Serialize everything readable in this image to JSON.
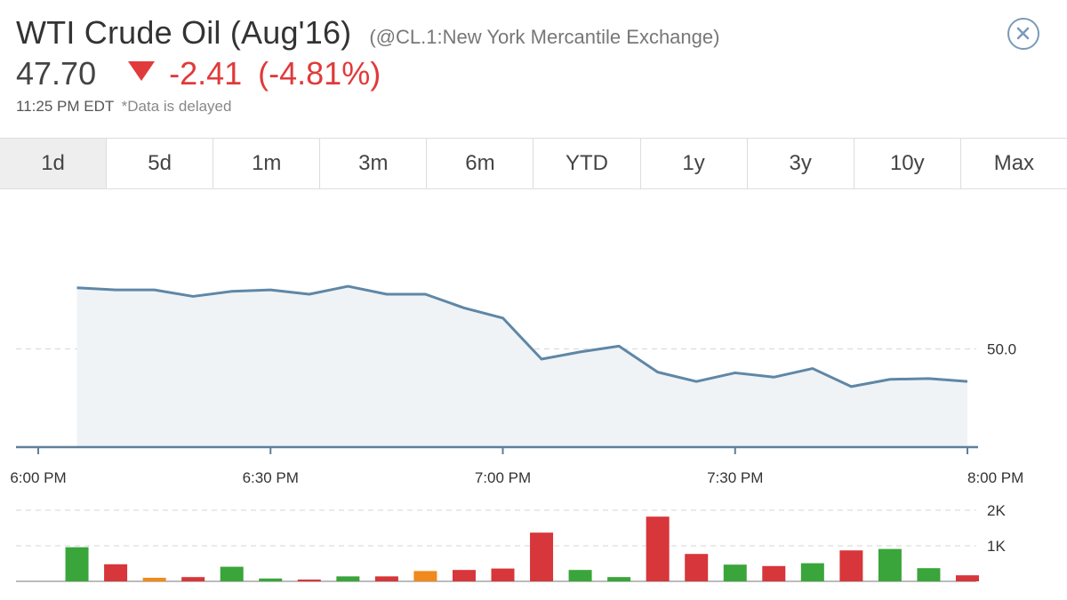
{
  "header": {
    "title": "WTI Crude Oil (Aug'16)",
    "exchange": "(@CL.1:New York Mercantile Exchange)",
    "price": "47.70",
    "change": "-2.41",
    "change_pct": "(-4.81%)",
    "time": "11:25 PM EDT",
    "delay_note": "*Data is delayed",
    "close_icon": "close-circle-icon",
    "down_icon": "triangle-down-icon"
  },
  "colors": {
    "down": "#e03a3a",
    "line": "#5f87a6",
    "area": "#eff3f6",
    "vol_up": "#3aa53a",
    "vol_down": "#d7363a",
    "vol_neutral": "#f08a1c"
  },
  "tabs": [
    {
      "label": "1d",
      "active": true
    },
    {
      "label": "5d",
      "active": false
    },
    {
      "label": "1m",
      "active": false
    },
    {
      "label": "3m",
      "active": false
    },
    {
      "label": "6m",
      "active": false
    },
    {
      "label": "YTD",
      "active": false
    },
    {
      "label": "1y",
      "active": false
    },
    {
      "label": "3y",
      "active": false
    },
    {
      "label": "10y",
      "active": false
    },
    {
      "label": "Max",
      "active": false
    }
  ],
  "chart_data": [
    {
      "type": "area",
      "ylim": [
        48.64,
        51.29
      ],
      "y_ticks": [
        {
          "value": 50.0,
          "label": "50.0"
        }
      ],
      "xlim": [
        0,
        120
      ],
      "x_ticks": [
        {
          "value": 0,
          "label": "6:00 PM"
        },
        {
          "value": 30,
          "label": "6:30 PM"
        },
        {
          "value": 60,
          "label": "7:00 PM"
        },
        {
          "value": 90,
          "label": "7:30 PM"
        },
        {
          "value": 120,
          "label": "8:00 PM"
        }
      ],
      "grid": "dashed horizontal at 50.0",
      "x": [
        5,
        10,
        15,
        20,
        25,
        30,
        35,
        40,
        45,
        50,
        55,
        60,
        65,
        70,
        75,
        80,
        85,
        90,
        95,
        100,
        105,
        110,
        115,
        120
      ],
      "values": [
        50.85,
        50.82,
        50.82,
        50.73,
        50.8,
        50.82,
        50.76,
        50.87,
        50.76,
        50.76,
        50.57,
        50.43,
        49.86,
        49.96,
        50.04,
        49.68,
        49.55,
        49.67,
        49.61,
        49.73,
        49.48,
        49.58,
        49.59,
        49.55
      ]
    },
    {
      "type": "bar",
      "ylim": [
        0,
        2000
      ],
      "y_ticks": [
        {
          "value": 1000,
          "label": "1K"
        },
        {
          "value": 2000,
          "label": "2K"
        }
      ],
      "grid": "dashed horizontal at 1K and 2K",
      "x": [
        5,
        10,
        15,
        20,
        25,
        30,
        35,
        40,
        45,
        50,
        55,
        60,
        65,
        70,
        75,
        80,
        85,
        90,
        95,
        100,
        105,
        110,
        115,
        120
      ],
      "values": [
        960,
        480,
        100,
        120,
        410,
        80,
        50,
        140,
        140,
        290,
        320,
        360,
        1370,
        320,
        120,
        1820,
        770,
        470,
        430,
        510,
        870,
        910,
        370,
        170
      ],
      "directions": [
        "up",
        "down",
        "neutral",
        "down",
        "up",
        "up",
        "down",
        "up",
        "down",
        "neutral",
        "down",
        "down",
        "down",
        "up",
        "up",
        "down",
        "down",
        "up",
        "down",
        "up",
        "down",
        "up",
        "up",
        "down"
      ]
    }
  ]
}
